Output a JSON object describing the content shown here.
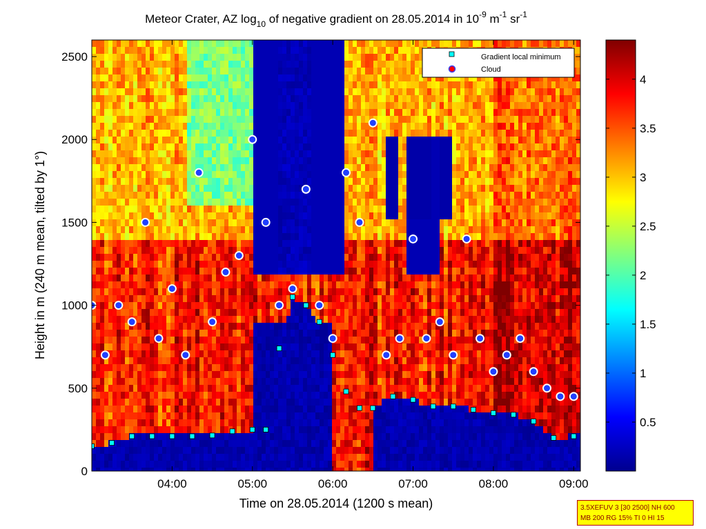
{
  "title": {
    "prefix": "Meteor Crater, AZ log",
    "sub": "10",
    "middle": " of negative gradient on 28.05.2014 in 10",
    "exp1": "-9",
    "unit_mid": " m",
    "exp2": "-1",
    "unit_end": " sr",
    "exp3": "-1"
  },
  "colors": {
    "low": "#00008f",
    "cyan": "#00ffff",
    "yellow": "#ffff00",
    "high": "#800000",
    "marker_min": "#00ffff",
    "marker_cloud": "#ff0000"
  },
  "chart_data": {
    "type": "heatmap",
    "xlabel": "Time on 28.05.2014 (1200 s mean)",
    "ylabel": "Height in m (240 m mean, tilted by 1°)",
    "xlim": [
      "03:00",
      "09:05"
    ],
    "ylim": [
      0,
      2600
    ],
    "x_ticks": [
      "04:00",
      "05:00",
      "06:00",
      "07:00",
      "08:00",
      "09:00"
    ],
    "y_ticks": [
      "0",
      "500",
      "1000",
      "1500",
      "2000",
      "2500"
    ],
    "colorbar": {
      "range": [
        0,
        4.4
      ],
      "ticks": [
        "0.5",
        "1",
        "1.5",
        "2",
        "2.5",
        "3",
        "3.5",
        "4"
      ],
      "colormap": "jet"
    },
    "legend": {
      "position": "top-right",
      "entries": [
        {
          "name": "Gradient local minimum",
          "marker": "square"
        },
        {
          "name": "Cloud",
          "marker": "circle"
        }
      ]
    },
    "gradient_local_minimum": {
      "x": [
        "03:00",
        "03:15",
        "03:30",
        "03:45",
        "04:00",
        "04:15",
        "04:30",
        "04:45",
        "05:00",
        "05:10",
        "05:20",
        "05:30",
        "05:40",
        "05:50",
        "06:00",
        "06:10",
        "06:20",
        "06:30",
        "06:45",
        "07:00",
        "07:15",
        "07:30",
        "07:45",
        "08:00",
        "08:15",
        "08:30",
        "08:45",
        "09:00"
      ],
      "y": [
        150,
        170,
        210,
        210,
        210,
        210,
        215,
        240,
        250,
        250,
        740,
        1050,
        1000,
        900,
        700,
        480,
        380,
        380,
        450,
        430,
        390,
        390,
        370,
        350,
        340,
        300,
        200,
        210
      ]
    },
    "cloud": {
      "x": [
        "03:00",
        "03:10",
        "03:20",
        "03:30",
        "03:40",
        "03:50",
        "04:00",
        "04:10",
        "04:20",
        "04:30",
        "04:40",
        "04:50",
        "05:00",
        "05:10",
        "05:20",
        "05:30",
        "05:40",
        "05:50",
        "06:00",
        "06:10",
        "06:20",
        "06:30",
        "06:40",
        "06:50",
        "07:00",
        "07:10",
        "07:20",
        "07:30",
        "07:40",
        "07:50",
        "08:00",
        "08:10",
        "08:20",
        "08:30",
        "08:40",
        "08:50",
        "09:00"
      ],
      "y": [
        1000,
        700,
        1000,
        900,
        1500,
        800,
        1100,
        700,
        1800,
        900,
        1200,
        1300,
        2000,
        1500,
        1000,
        1100,
        1700,
        1000,
        800,
        1800,
        1500,
        2100,
        700,
        800,
        1400,
        800,
        900,
        700,
        1400,
        800,
        600,
        700,
        800,
        600,
        500,
        450,
        450
      ]
    }
  },
  "info_box": {
    "line1": "3.5XEFUV 3 [30 2500] NH 600",
    "line2": "MB 200 RG 15% TI 0 HI 15"
  }
}
